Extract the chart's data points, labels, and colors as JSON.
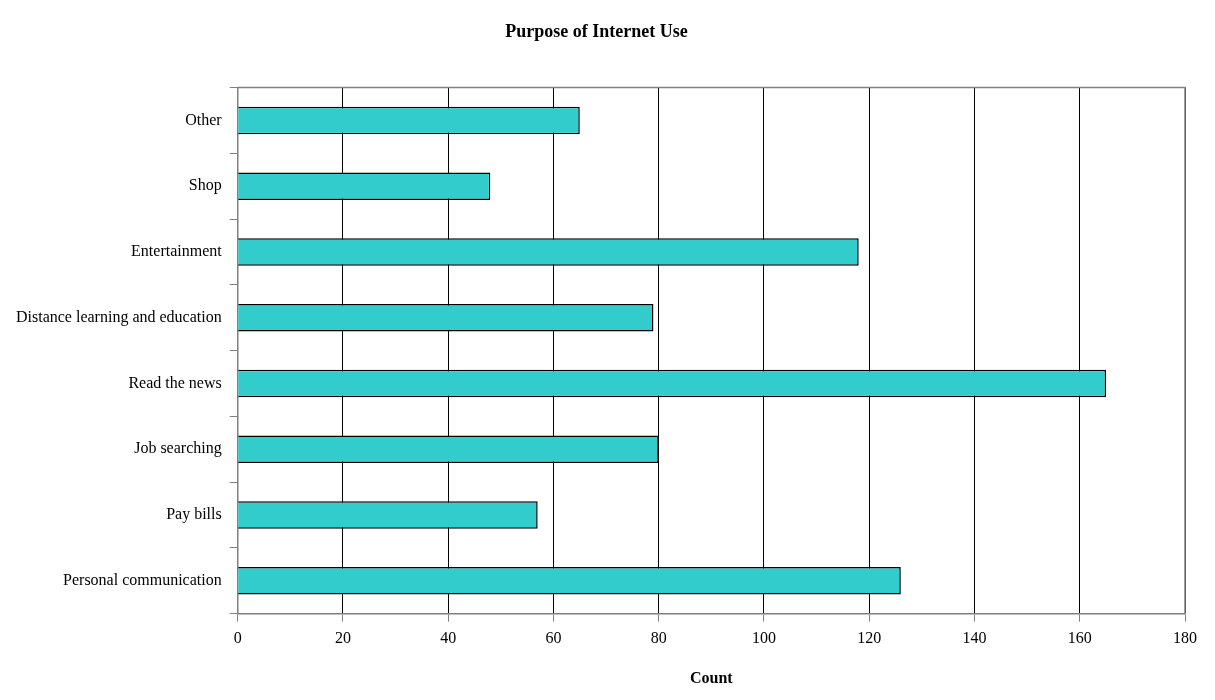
{
  "chart_data": {
    "type": "bar",
    "orientation": "horizontal",
    "title": "Purpose of Internet Use",
    "xlabel": "Count",
    "categories": [
      "Other",
      "Shop",
      "Entertainment",
      "Distance learning and education",
      "Read the news",
      "Job searching",
      "Pay bills",
      "Personal communication"
    ],
    "values": [
      65,
      48,
      118,
      79,
      165,
      80,
      57,
      126
    ],
    "color": "#33cccc",
    "xlim": [
      0,
      180
    ],
    "xticks": [
      0,
      20,
      40,
      60,
      80,
      100,
      120,
      140,
      160,
      180
    ],
    "grid": "x"
  }
}
